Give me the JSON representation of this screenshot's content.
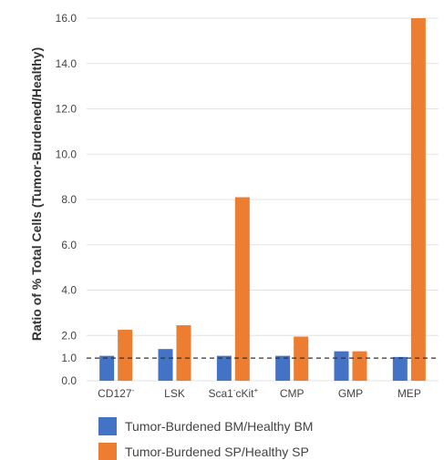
{
  "chart_data": {
    "type": "bar",
    "ylabel": "Ratio of % Total Cells (Tumor-Burdened/Healthy)",
    "xlabel": "",
    "title": "",
    "ylim": [
      0,
      16.0
    ],
    "yticks": [
      "0.0",
      "1.0",
      "2.0",
      "4.0",
      "6.0",
      "8.0",
      "10.0",
      "12.0",
      "14.0",
      "16.0"
    ],
    "ytick_values": [
      0,
      1,
      2,
      4,
      6,
      8,
      10,
      12,
      14,
      16
    ],
    "categories": [
      {
        "base": "CD127",
        "sup": "-",
        "mid": "",
        "sup2": ""
      },
      {
        "base": "LSK",
        "sup": "",
        "mid": "",
        "sup2": ""
      },
      {
        "base": "Sca1",
        "sup": "-",
        "mid": "cKit",
        "sup2": "+"
      },
      {
        "base": "CMP",
        "sup": "",
        "mid": "",
        "sup2": ""
      },
      {
        "base": "GMP",
        "sup": "",
        "mid": "",
        "sup2": ""
      },
      {
        "base": "MEP",
        "sup": "",
        "mid": "",
        "sup2": ""
      }
    ],
    "series": [
      {
        "name": "Tumor-Burdened BM/Healthy BM",
        "color": "#4472c4",
        "values": [
          1.1,
          1.4,
          1.1,
          1.1,
          1.3,
          1.05
        ]
      },
      {
        "name": "Tumor-Burdened SP/Healthy SP",
        "color": "#ed7d31",
        "values": [
          2.25,
          2.45,
          8.1,
          1.95,
          1.3,
          16.0
        ]
      }
    ],
    "reference_line": {
      "value": 1.0,
      "style": "dashed"
    },
    "grid": true,
    "legend_position": "bottom"
  }
}
